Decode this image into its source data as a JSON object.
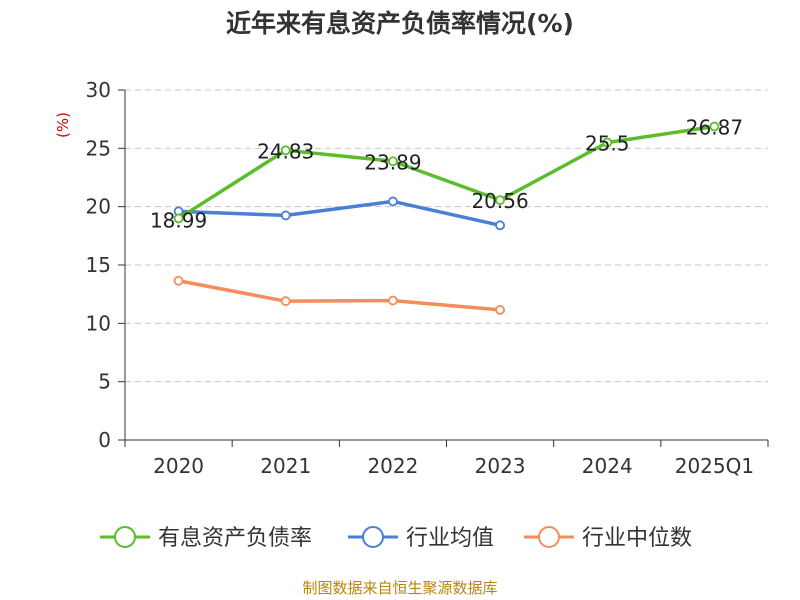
{
  "chart_data": {
    "type": "line",
    "title": "近年来有息资产负债率情况(%)",
    "ylabel": "(%)",
    "xlabel": "",
    "categories": [
      "2020",
      "2021",
      "2022",
      "2023",
      "2024",
      "2025Q1"
    ],
    "ylim": [
      0,
      30
    ],
    "yticks": [
      0,
      5,
      10,
      15,
      20,
      25,
      30
    ],
    "grid": true,
    "legend_position": "bottom",
    "series": [
      {
        "name": "有息资产负债率",
        "color": "#5bbd2b",
        "values": [
          18.99,
          24.83,
          23.89,
          20.56,
          25.5,
          26.87
        ],
        "labels": [
          "18.99",
          "24.83",
          "23.89",
          "20.56",
          "25.5",
          "26.87"
        ]
      },
      {
        "name": "行业均值",
        "color": "#4a7fd6",
        "values": [
          19.6,
          19.25,
          20.45,
          18.4,
          null,
          null
        ]
      },
      {
        "name": "行业中位数",
        "color": "#f58c5a",
        "values": [
          13.65,
          11.9,
          11.95,
          11.15,
          null,
          null
        ]
      }
    ]
  },
  "source": "制图数据来自恒生聚源数据库"
}
